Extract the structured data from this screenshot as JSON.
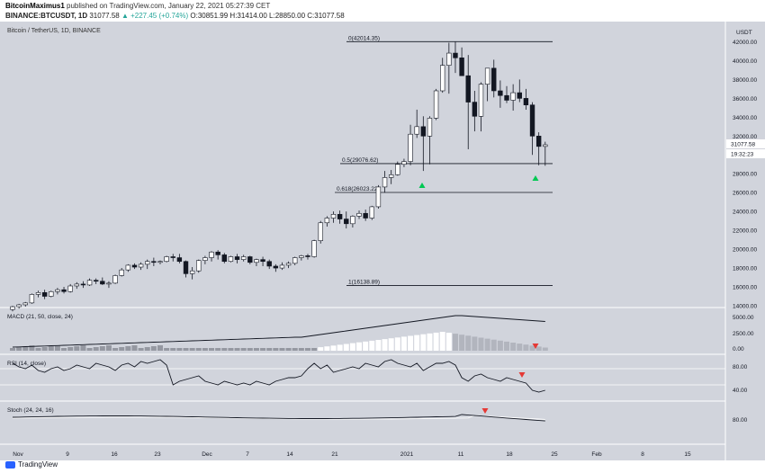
{
  "header": {
    "author": "BitcoinMaximus1",
    "published": "published on TradingView.com, January 22, 2021 05:27:39 CET",
    "symbol": "BINANCE:BTCUSDT, 1D",
    "last": "31077.58",
    "change": "▲ +227.45 (+0.74%)",
    "ohlc": "O:30851.99 H:31414.00 L:28850.00 C:31077.58"
  },
  "chart": {
    "title": "Bitcoin / TetherUS, 1D, BINANCE",
    "currency": "USDT",
    "price_ticks": [
      "42000.00",
      "40000.00",
      "38000.00",
      "36000.00",
      "34000.00",
      "32000.00",
      "30000.00",
      "28000.00",
      "26000.00",
      "24000.00",
      "22000.00",
      "20000.00",
      "18000.00",
      "16000.00",
      "14000.00"
    ],
    "last_price_label": "31077.58",
    "countdown_label": "19:32:23",
    "fib_levels": [
      {
        "label": "0(42014.35)",
        "value": 42014.35
      },
      {
        "label": "0.5(29076.62)",
        "value": 29076.62
      },
      {
        "label": "0.618(26023.22)",
        "value": 26023.22
      },
      {
        "label": "1(16138.89)",
        "value": 16138.89
      }
    ],
    "date_ticks": [
      "Nov",
      "9",
      "16",
      "23",
      "Dec",
      "7",
      "14",
      "21",
      "2021",
      "11",
      "18",
      "25",
      "Feb",
      "8",
      "15"
    ],
    "colors": {
      "up": "#ffffff",
      "down": "#131722",
      "bg": "#d1d4dc",
      "arrow_up": "#00c853",
      "arrow_down": "#e53935"
    }
  },
  "macd": {
    "label": "MACD (21, 50, close, 24)",
    "ticks": [
      "5000.00",
      "2500.00",
      "0.00"
    ]
  },
  "rsi": {
    "label": "RSI (14, close)",
    "ticks": [
      "80.00",
      "40.00"
    ]
  },
  "stoch": {
    "label": "Stoch (24, 24, 16)",
    "ticks": [
      "80.00"
    ]
  },
  "chart_data": {
    "type": "candlestick",
    "title": "Bitcoin / TetherUS, 1D, BINANCE",
    "ylim": [
      14000,
      43000
    ],
    "candles": [
      [
        13600,
        14000,
        13400,
        13900
      ],
      [
        13900,
        14200,
        13700,
        14100
      ],
      [
        14100,
        14400,
        13900,
        14300
      ],
      [
        14300,
        15300,
        14200,
        15200
      ],
      [
        15200,
        15600,
        14900,
        15400
      ],
      [
        15400,
        15700,
        14700,
        15000
      ],
      [
        15000,
        15600,
        14900,
        15500
      ],
      [
        15500,
        15900,
        15200,
        15700
      ],
      [
        15700,
        16000,
        15300,
        15500
      ],
      [
        15500,
        16300,
        15400,
        16100
      ],
      [
        16100,
        16500,
        15800,
        16300
      ],
      [
        16300,
        16600,
        15900,
        16200
      ],
      [
        16200,
        16900,
        16100,
        16700
      ],
      [
        16700,
        16900,
        16300,
        16600
      ],
      [
        16600,
        17000,
        16200,
        16300
      ],
      [
        16300,
        16600,
        15900,
        16400
      ],
      [
        16400,
        17300,
        16300,
        17200
      ],
      [
        17200,
        18000,
        17100,
        17800
      ],
      [
        17800,
        18400,
        17600,
        18300
      ],
      [
        18300,
        18500,
        17900,
        18100
      ],
      [
        18100,
        18600,
        17800,
        18400
      ],
      [
        18400,
        18900,
        17900,
        18700
      ],
      [
        18700,
        19100,
        18200,
        18600
      ],
      [
        18600,
        18800,
        18400,
        18700
      ],
      [
        18700,
        19300,
        18600,
        19200
      ],
      [
        19200,
        19500,
        18700,
        19100
      ],
      [
        19100,
        19500,
        18500,
        18700
      ],
      [
        18700,
        18800,
        17000,
        17400
      ],
      [
        17400,
        18100,
        16800,
        17700
      ],
      [
        17700,
        18900,
        17500,
        18800
      ],
      [
        18800,
        19300,
        18400,
        19100
      ],
      [
        19100,
        19800,
        18700,
        19700
      ],
      [
        19700,
        19900,
        18900,
        19400
      ],
      [
        19400,
        19600,
        18500,
        18700
      ],
      [
        18700,
        19300,
        18600,
        19200
      ],
      [
        19200,
        19500,
        18500,
        18900
      ],
      [
        18900,
        19400,
        18700,
        19200
      ],
      [
        19200,
        19300,
        18400,
        18600
      ],
      [
        18600,
        19000,
        18200,
        18900
      ],
      [
        18900,
        19200,
        18200,
        18700
      ],
      [
        18700,
        18900,
        17900,
        18200
      ],
      [
        18200,
        18400,
        17600,
        18000
      ],
      [
        18000,
        18600,
        17800,
        18300
      ],
      [
        18300,
        18700,
        18000,
        18500
      ],
      [
        18500,
        19200,
        18300,
        19100
      ],
      [
        19100,
        19400,
        18800,
        19300
      ],
      [
        19300,
        19500,
        18900,
        19200
      ],
      [
        19200,
        21000,
        19100,
        20900
      ],
      [
        20900,
        23000,
        20600,
        22800
      ],
      [
        22800,
        23500,
        22400,
        23300
      ],
      [
        23300,
        24000,
        22800,
        23700
      ],
      [
        23700,
        24100,
        22700,
        23200
      ],
      [
        23200,
        24000,
        22200,
        22700
      ],
      [
        22700,
        23600,
        22300,
        23500
      ],
      [
        23500,
        24100,
        23200,
        23800
      ],
      [
        23800,
        24200,
        23000,
        23300
      ],
      [
        23300,
        24600,
        23100,
        24500
      ],
      [
        24500,
        26800,
        24300,
        26600
      ],
      [
        26600,
        28300,
        26000,
        27600
      ],
      [
        27600,
        28400,
        26900,
        27900
      ],
      [
        27900,
        29300,
        27800,
        29000
      ],
      [
        29000,
        29600,
        28700,
        29300
      ],
      [
        29300,
        33200,
        28900,
        32200
      ],
      [
        32200,
        34800,
        31800,
        33000
      ],
      [
        33000,
        34100,
        28300,
        32000
      ],
      [
        32000,
        34100,
        29000,
        33900
      ],
      [
        33900,
        37000,
        33700,
        36800
      ],
      [
        36800,
        40300,
        36600,
        39500
      ],
      [
        39500,
        41900,
        36500,
        40800
      ],
      [
        40800,
        42000,
        38700,
        40300
      ],
      [
        40300,
        41400,
        38500,
        38400
      ],
      [
        38400,
        40600,
        30600,
        35600
      ],
      [
        35600,
        36800,
        32500,
        34100
      ],
      [
        34100,
        37700,
        32500,
        37500
      ],
      [
        37500,
        39200,
        35700,
        39200
      ],
      [
        39200,
        40100,
        36100,
        36800
      ],
      [
        36800,
        37900,
        35000,
        36300
      ],
      [
        36300,
        37300,
        35500,
        35800
      ],
      [
        35800,
        37500,
        34700,
        36600
      ],
      [
        36600,
        38000,
        35600,
        36000
      ],
      [
        36000,
        37000,
        34800,
        35300
      ],
      [
        35300,
        35600,
        30000,
        32000
      ],
      [
        32000,
        32400,
        28900,
        30900
      ],
      [
        30900,
        31400,
        28850,
        31078
      ]
    ]
  }
}
